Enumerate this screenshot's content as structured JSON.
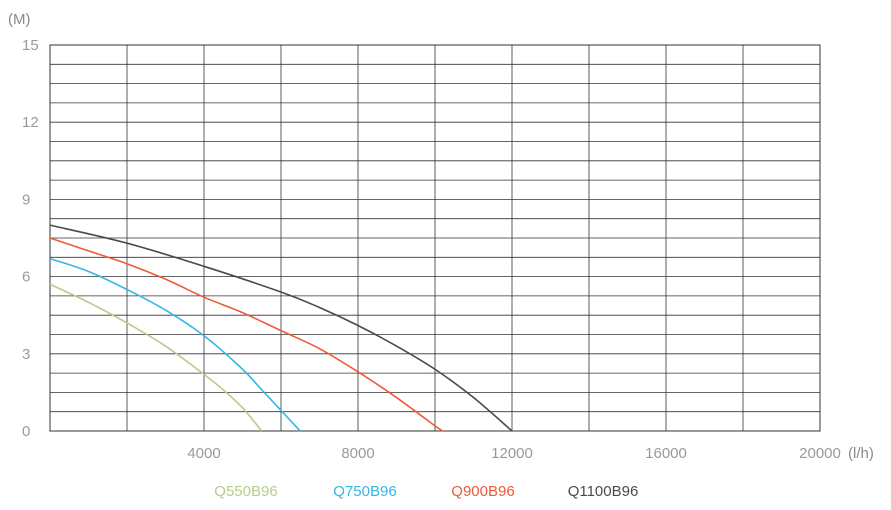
{
  "chart_data": {
    "type": "line",
    "title": "",
    "ylabel": "(M)",
    "xlabel": "(l/h)",
    "xlim": [
      0,
      20000
    ],
    "ylim": [
      0,
      15
    ],
    "x_ticks": [
      4000,
      8000,
      12000,
      16000,
      20000
    ],
    "x_tick_labels": [
      "4000",
      "8000",
      "12000",
      "16000",
      "20000"
    ],
    "y_ticks": [
      0,
      3,
      6,
      9,
      12,
      15
    ],
    "y_tick_labels": [
      "0",
      "3",
      "6",
      "9",
      "12",
      "15"
    ],
    "grid": true,
    "legend_position": "bottom-center",
    "series": [
      {
        "name": "Q550B96",
        "color": "#b5cc8c",
        "x": [
          0,
          1000,
          2000,
          3000,
          4000,
          4500,
          5000,
          5500
        ],
        "y": [
          5.7,
          5.0,
          4.2,
          3.3,
          2.2,
          1.6,
          0.9,
          0
        ]
      },
      {
        "name": "Q750B96",
        "color": "#35b6e6",
        "x": [
          0,
          1000,
          2000,
          3000,
          4000,
          5000,
          5500,
          6000,
          6500
        ],
        "y": [
          6.7,
          6.2,
          5.5,
          4.7,
          3.7,
          2.4,
          1.6,
          0.8,
          0
        ]
      },
      {
        "name": "Q900B96",
        "color": "#ef5a38",
        "x": [
          0,
          1000,
          2000,
          3000,
          4000,
          5000,
          6000,
          7000,
          8000,
          9000,
          10000,
          10200
        ],
        "y": [
          7.5,
          7.0,
          6.5,
          5.9,
          5.2,
          4.6,
          3.9,
          3.2,
          2.3,
          1.3,
          0.2,
          0
        ]
      },
      {
        "name": "Q1100B96",
        "color": "#4a4a4a",
        "x": [
          0,
          2000,
          4000,
          6000,
          7000,
          8000,
          9000,
          10000,
          11000,
          12000
        ],
        "y": [
          8.0,
          7.3,
          6.4,
          5.4,
          4.8,
          4.1,
          3.3,
          2.4,
          1.3,
          0
        ]
      }
    ]
  }
}
